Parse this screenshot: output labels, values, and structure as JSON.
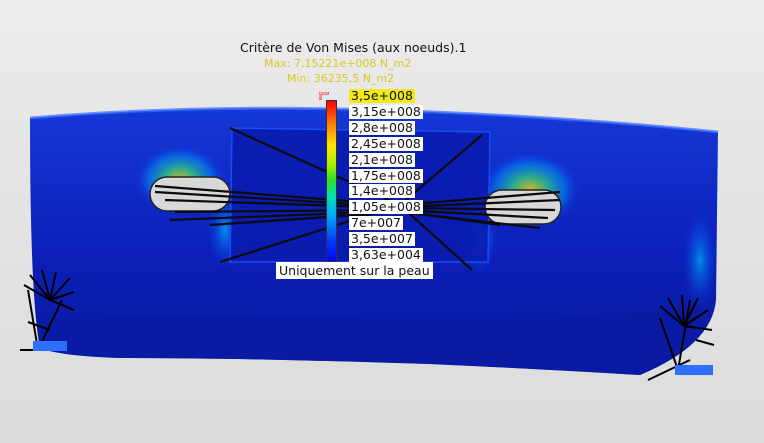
{
  "result_plot": {
    "title": "Critère de Von Mises (aux noeuds).1",
    "max_label": "Max: 7,15221e+008 N_m2",
    "min_label": "Min: 36235,5 N_m2",
    "scale_values": [
      "3,5e+008",
      "3,15e+008",
      "2,8e+008",
      "2,45e+008",
      "2,1e+008",
      "1,75e+008",
      "1,4e+008",
      "1,05e+008",
      "7e+007",
      "3,5e+007",
      "3,63e+004"
    ],
    "display_option": "Uniquement sur la peau"
  },
  "colors": {
    "background": "#e6e6e6",
    "part_blue": "#1024c8",
    "part_dark_blue": "#0010a0",
    "stress_high": "#ff0000",
    "max_highlight": "#f2ea18",
    "restraint_blue": "#2f6fff"
  },
  "icons": {
    "marker": "scale-marker-icon",
    "restraint_left": "clamp-restraint-icon",
    "restraint_right": "clamp-restraint-icon"
  }
}
